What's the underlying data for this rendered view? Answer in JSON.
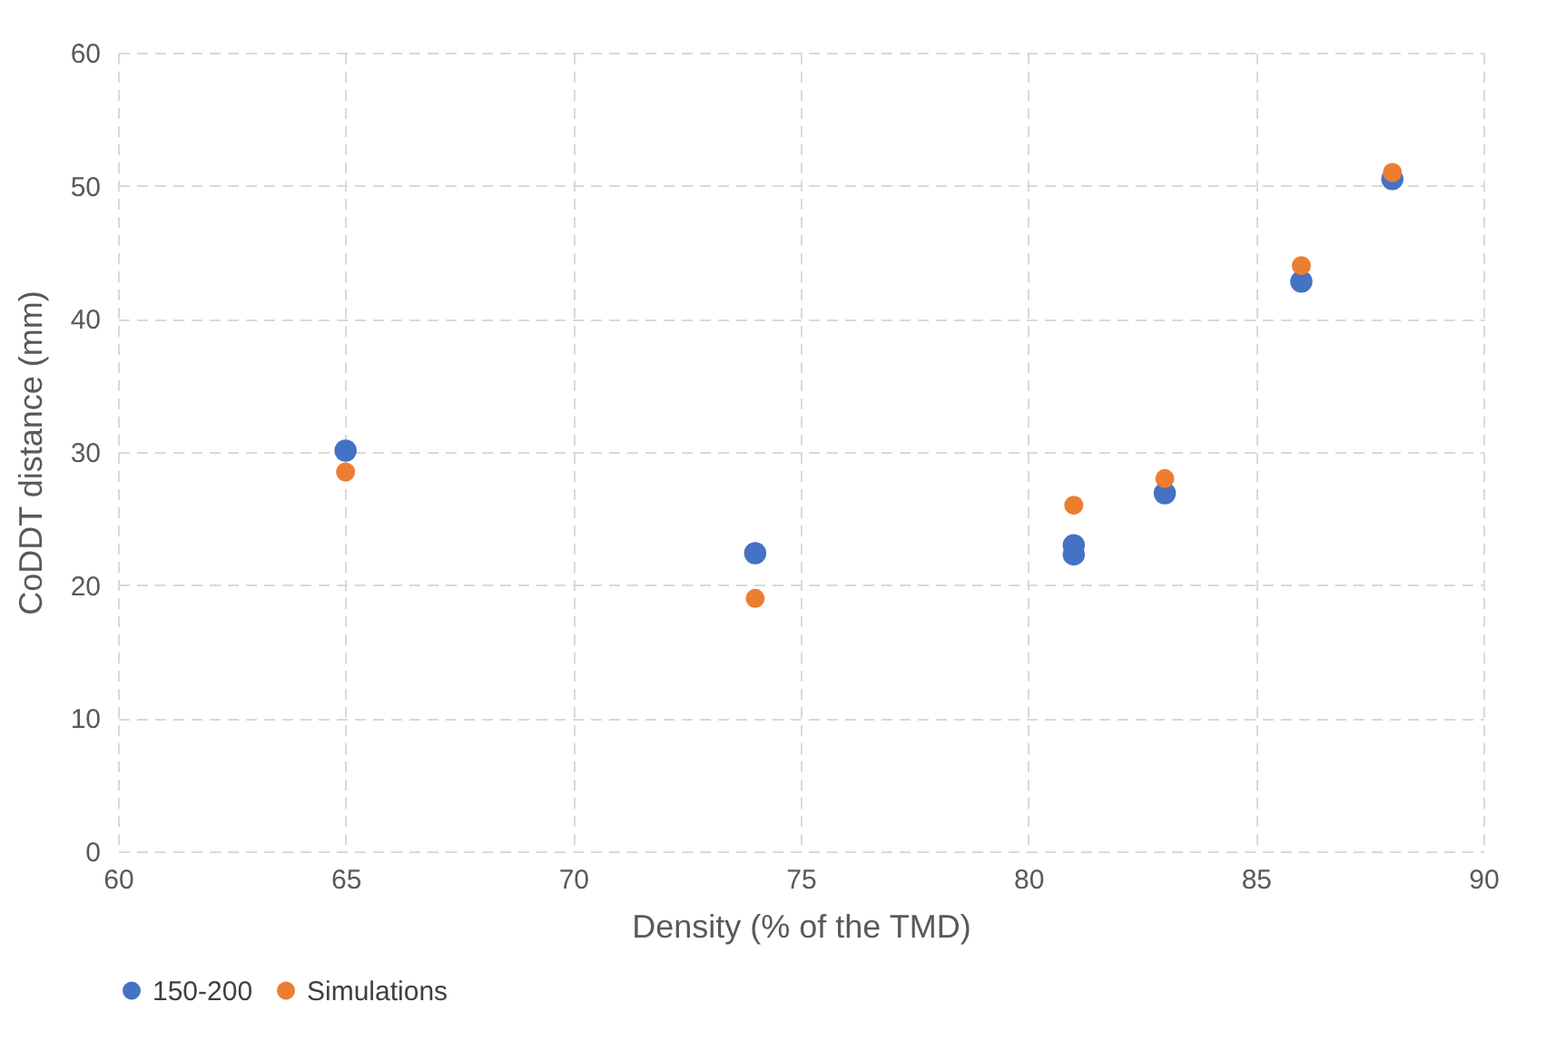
{
  "chart_data": {
    "type": "scatter",
    "xlabel": "Density (% of the TMD)",
    "ylabel": "CoDDT distance  (mm)",
    "series": [
      {
        "name": "150-200",
        "color": "#4472c4",
        "x": [
          65,
          74,
          81,
          81,
          83,
          86,
          88
        ],
        "values": [
          30.1,
          22.4,
          23.0,
          22.3,
          26.9,
          42.8,
          50.5
        ]
      },
      {
        "name": "Simulations",
        "color": "#ed7d31",
        "x": [
          65,
          74,
          81,
          83,
          86,
          88
        ],
        "values": [
          28.5,
          19.0,
          26.0,
          28.0,
          44.0,
          51.0
        ]
      }
    ],
    "xlim": [
      60,
      90
    ],
    "xticks": [
      60,
      65,
      70,
      75,
      80,
      85,
      90
    ],
    "ylim": [
      0,
      60
    ],
    "yticks": [
      0,
      10,
      20,
      30,
      40,
      50,
      60
    ],
    "grid": true,
    "legend": "bottom",
    "marker": "circle"
  }
}
